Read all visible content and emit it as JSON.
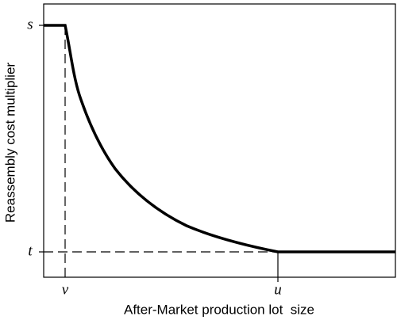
{
  "axes": {
    "x_label": "After-Market production lot  size",
    "y_label": "Reassembly cost multiplier"
  },
  "y_ticks": [
    "s",
    "t"
  ],
  "x_ticks": [
    "v",
    "u"
  ]
}
